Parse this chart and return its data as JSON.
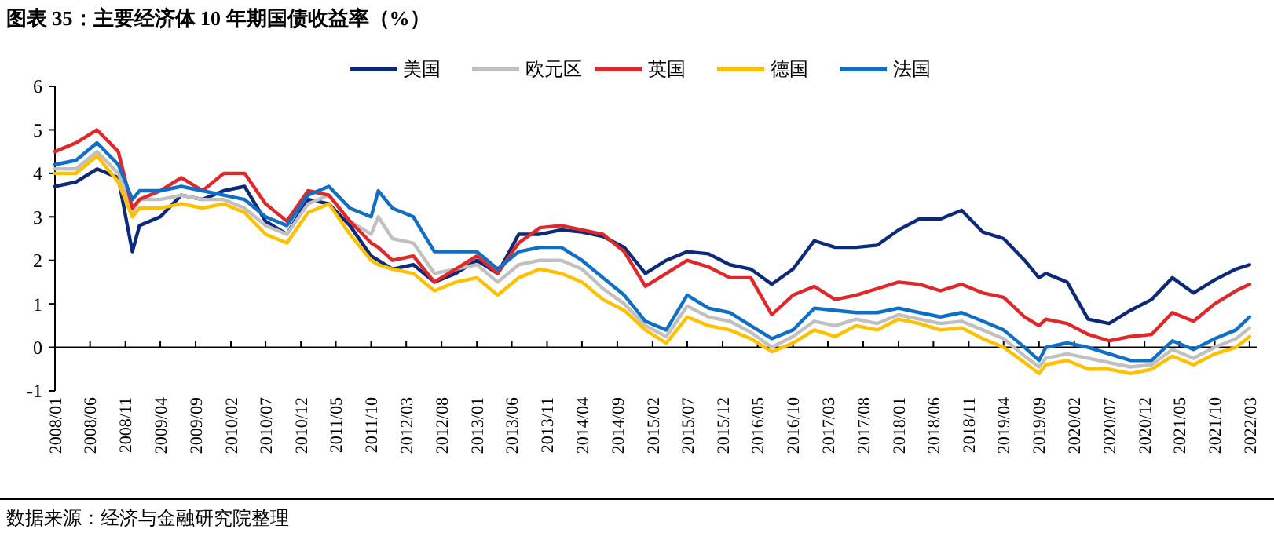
{
  "chart_data": {
    "type": "line",
    "title": "图表 35：主要经济体 10 年期国债收益率（%）",
    "annotations": [
      "数据来源：经济与金融研究院整理"
    ],
    "x": [
      "2008-01",
      "2008-04",
      "2008-07",
      "2008-10",
      "2008-12",
      "2009-01",
      "2009-04",
      "2009-07",
      "2009-10",
      "2010-01",
      "2010-04",
      "2010-07",
      "2010-10",
      "2011-01",
      "2011-04",
      "2011-07",
      "2011-10",
      "2011-11",
      "2012-01",
      "2012-04",
      "2012-07",
      "2012-10",
      "2013-01",
      "2013-04",
      "2013-07",
      "2013-10",
      "2014-01",
      "2014-04",
      "2014-07",
      "2014-10",
      "2015-01",
      "2015-04",
      "2015-07",
      "2015-10",
      "2016-01",
      "2016-04",
      "2016-07",
      "2016-10",
      "2017-01",
      "2017-04",
      "2017-07",
      "2017-10",
      "2018-01",
      "2018-04",
      "2018-07",
      "2018-10",
      "2019-01",
      "2019-04",
      "2019-07",
      "2019-09",
      "2019-10",
      "2020-01",
      "2020-04",
      "2020-07",
      "2020-10",
      "2021-01",
      "2021-04",
      "2021-07",
      "2021-10",
      "2022-01",
      "2022-03"
    ],
    "series": [
      {
        "name": "美国",
        "color": "#0d2a7a",
        "values": [
          3.7,
          3.8,
          4.1,
          3.9,
          2.2,
          2.8,
          3.0,
          3.5,
          3.4,
          3.6,
          3.7,
          2.9,
          2.6,
          3.4,
          3.3,
          2.8,
          2.1,
          2.0,
          1.8,
          1.9,
          1.5,
          1.7,
          2.0,
          1.7,
          2.6,
          2.6,
          2.7,
          2.65,
          2.55,
          2.3,
          1.7,
          2.0,
          2.2,
          2.15,
          1.9,
          1.8,
          1.45,
          1.8,
          2.45,
          2.3,
          2.3,
          2.35,
          2.7,
          2.95,
          2.95,
          3.15,
          2.65,
          2.5,
          2.0,
          1.6,
          1.7,
          1.5,
          0.65,
          0.55,
          0.85,
          1.1,
          1.6,
          1.25,
          1.55,
          1.8,
          1.9
        ]
      },
      {
        "name": "欧元区",
        "color": "#c0c0c0",
        "values": [
          4.1,
          4.1,
          4.5,
          4.0,
          3.1,
          3.4,
          3.4,
          3.5,
          3.4,
          3.4,
          3.2,
          2.8,
          2.6,
          3.3,
          3.5,
          2.9,
          2.6,
          3.0,
          2.5,
          2.4,
          1.7,
          1.8,
          1.9,
          1.5,
          1.9,
          2.0,
          2.0,
          1.8,
          1.35,
          1.0,
          0.5,
          0.25,
          0.95,
          0.7,
          0.6,
          0.35,
          0.0,
          0.25,
          0.6,
          0.5,
          0.65,
          0.55,
          0.75,
          0.65,
          0.55,
          0.6,
          0.4,
          0.2,
          -0.2,
          -0.45,
          -0.25,
          -0.15,
          -0.25,
          -0.35,
          -0.45,
          -0.4,
          -0.05,
          -0.25,
          0.0,
          0.2,
          0.45
        ]
      },
      {
        "name": "英国",
        "color": "#e0282a",
        "values": [
          4.5,
          4.7,
          5.0,
          4.5,
          3.2,
          3.4,
          3.6,
          3.9,
          3.6,
          4.0,
          4.0,
          3.3,
          2.9,
          3.6,
          3.5,
          2.9,
          2.4,
          2.3,
          2.0,
          2.1,
          1.5,
          1.8,
          2.1,
          1.7,
          2.4,
          2.75,
          2.8,
          2.7,
          2.6,
          2.2,
          1.4,
          1.7,
          2.0,
          1.85,
          1.6,
          1.6,
          0.75,
          1.2,
          1.4,
          1.1,
          1.2,
          1.35,
          1.5,
          1.45,
          1.3,
          1.45,
          1.25,
          1.15,
          0.7,
          0.5,
          0.65,
          0.55,
          0.3,
          0.15,
          0.25,
          0.3,
          0.8,
          0.6,
          1.0,
          1.3,
          1.45
        ]
      },
      {
        "name": "德国",
        "color": "#ffc000",
        "values": [
          4.0,
          4.0,
          4.4,
          3.8,
          3.0,
          3.2,
          3.2,
          3.3,
          3.2,
          3.3,
          3.1,
          2.6,
          2.4,
          3.1,
          3.3,
          2.6,
          2.0,
          1.9,
          1.8,
          1.7,
          1.3,
          1.5,
          1.6,
          1.2,
          1.6,
          1.8,
          1.7,
          1.5,
          1.1,
          0.85,
          0.4,
          0.1,
          0.7,
          0.5,
          0.4,
          0.2,
          -0.1,
          0.1,
          0.4,
          0.25,
          0.5,
          0.4,
          0.65,
          0.55,
          0.4,
          0.45,
          0.2,
          0.0,
          -0.35,
          -0.6,
          -0.4,
          -0.3,
          -0.5,
          -0.5,
          -0.6,
          -0.5,
          -0.2,
          -0.4,
          -0.15,
          0.0,
          0.25
        ]
      },
      {
        "name": "法国",
        "color": "#0f6fc6",
        "values": [
          4.2,
          4.3,
          4.7,
          4.2,
          3.4,
          3.6,
          3.6,
          3.7,
          3.6,
          3.5,
          3.4,
          3.0,
          2.8,
          3.5,
          3.7,
          3.2,
          3.0,
          3.6,
          3.2,
          3.0,
          2.2,
          2.2,
          2.2,
          1.8,
          2.2,
          2.3,
          2.3,
          2.0,
          1.6,
          1.2,
          0.6,
          0.4,
          1.2,
          0.9,
          0.8,
          0.5,
          0.2,
          0.4,
          0.9,
          0.85,
          0.8,
          0.8,
          0.9,
          0.8,
          0.7,
          0.8,
          0.6,
          0.4,
          0.0,
          -0.3,
          0.0,
          0.1,
          0.0,
          -0.15,
          -0.3,
          -0.3,
          0.15,
          -0.05,
          0.2,
          0.4,
          0.7
        ]
      }
    ],
    "xlim": [
      "2008-01",
      "2022-04"
    ],
    "xticks": [
      {
        "value": "2008-01",
        "label": "2008/01"
      },
      {
        "value": "2008-06",
        "label": "2008/06"
      },
      {
        "value": "2008-11",
        "label": "2008/11"
      },
      {
        "value": "2009-04",
        "label": "2009/04"
      },
      {
        "value": "2009-09",
        "label": "2009/09"
      },
      {
        "value": "2010-02",
        "label": "2010/02"
      },
      {
        "value": "2010-07",
        "label": "2010/07"
      },
      {
        "value": "2010-12",
        "label": "2010/12"
      },
      {
        "value": "2011-05",
        "label": "2011/05"
      },
      {
        "value": "2011-10",
        "label": "2011/10"
      },
      {
        "value": "2012-03",
        "label": "2012/03"
      },
      {
        "value": "2012-08",
        "label": "2012/08"
      },
      {
        "value": "2013-01",
        "label": "2013/01"
      },
      {
        "value": "2013-06",
        "label": "2013/06"
      },
      {
        "value": "2013-11",
        "label": "2013/11"
      },
      {
        "value": "2014-04",
        "label": "2014/04"
      },
      {
        "value": "2014-09",
        "label": "2014/09"
      },
      {
        "value": "2015-02",
        "label": "2015/02"
      },
      {
        "value": "2015-07",
        "label": "2015/07"
      },
      {
        "value": "2015-12",
        "label": "2015/12"
      },
      {
        "value": "2016-05",
        "label": "2016/05"
      },
      {
        "value": "2016-10",
        "label": "2016/10"
      },
      {
        "value": "2017-03",
        "label": "2017/03"
      },
      {
        "value": "2017-08",
        "label": "2017/08"
      },
      {
        "value": "2018-01",
        "label": "2018/01"
      },
      {
        "value": "2018-06",
        "label": "2018/06"
      },
      {
        "value": "2018-11",
        "label": "2018/11"
      },
      {
        "value": "2019-04",
        "label": "2019/04"
      },
      {
        "value": "2019-09",
        "label": "2019/09"
      },
      {
        "value": "2020-02",
        "label": "2020/02"
      },
      {
        "value": "2020-07",
        "label": "2020/07"
      },
      {
        "value": "2020-12",
        "label": "2020/12"
      },
      {
        "value": "2021-05",
        "label": "2021/05"
      },
      {
        "value": "2021-10",
        "label": "2021/10"
      },
      {
        "value": "2022-03",
        "label": "2022/03"
      }
    ],
    "ylim": [
      -1,
      6
    ],
    "yticks": [
      -1,
      0,
      1,
      2,
      3,
      4,
      5,
      6
    ],
    "legend": "top",
    "marker": "none",
    "line_style": "solid"
  }
}
